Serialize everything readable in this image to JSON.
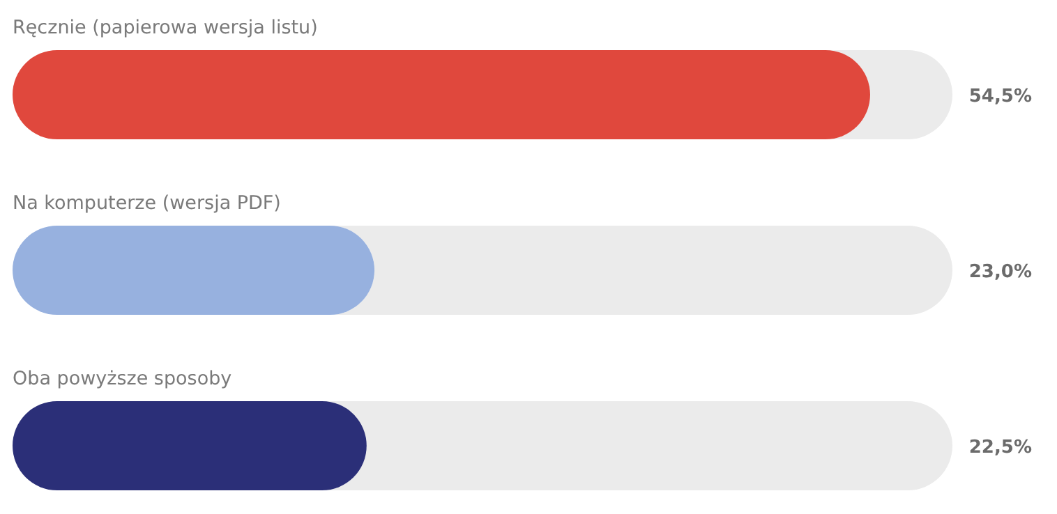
{
  "chart_data": {
    "type": "bar",
    "orientation": "horizontal",
    "categories": [
      "Ręcznie (papierowa wersja listu)",
      "Na komputerze (wersja PDF)",
      "Oba powyższe sposoby"
    ],
    "values": [
      54.5,
      23.0,
      22.5
    ],
    "colors": [
      "#e0483d",
      "#97b1df",
      "#2b2f78"
    ],
    "value_labels": [
      "54,5%",
      "23,0%",
      "22,5%"
    ]
  }
}
